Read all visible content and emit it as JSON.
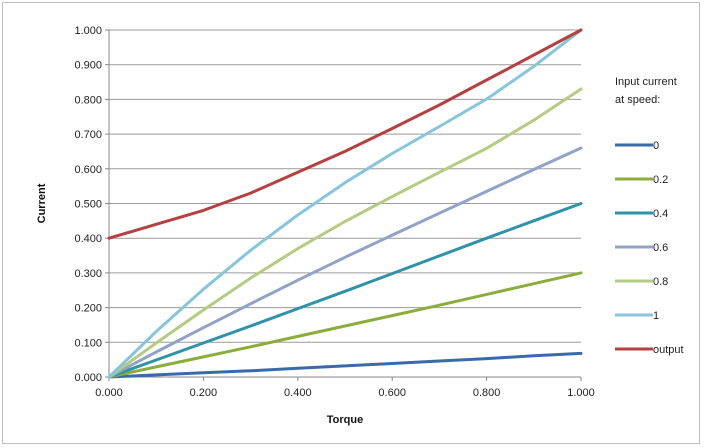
{
  "chart_data": {
    "type": "line",
    "title": "",
    "xlabel": "Torque",
    "ylabel": "Current",
    "xlim": [
      0,
      1
    ],
    "ylim": [
      0,
      1
    ],
    "grid": "horizontal",
    "x_ticks": [
      "0.000",
      "0.200",
      "0.400",
      "0.600",
      "0.800",
      "1.000"
    ],
    "y_ticks": [
      "0.000",
      "0.100",
      "0.200",
      "0.300",
      "0.400",
      "0.500",
      "0.600",
      "0.700",
      "0.800",
      "0.900",
      "1.000"
    ],
    "legend": {
      "title_lines": [
        "Input current",
        "at speed:"
      ],
      "placement": "right"
    },
    "x": [
      0,
      0.1,
      0.2,
      0.3,
      0.4,
      0.5,
      0.6,
      0.7,
      0.8,
      0.9,
      1.0
    ],
    "series": [
      {
        "name": "0",
        "color": "#3a6aa8",
        "values": [
          0.0,
          0.006,
          0.012,
          0.018,
          0.025,
          0.032,
          0.039,
          0.046,
          0.053,
          0.061,
          0.068
        ]
      },
      {
        "name": "0.2",
        "color": "#8aad3c",
        "values": [
          0.0,
          0.029,
          0.058,
          0.087,
          0.117,
          0.147,
          0.177,
          0.207,
          0.238,
          0.269,
          0.3
        ]
      },
      {
        "name": "0.4",
        "color": "#2e92a8",
        "values": [
          0.0,
          0.049,
          0.098,
          0.147,
          0.197,
          0.247,
          0.298,
          0.349,
          0.4,
          0.45,
          0.5
        ]
      },
      {
        "name": "0.6",
        "color": "#8fa2c8",
        "values": [
          0.0,
          0.072,
          0.142,
          0.211,
          0.279,
          0.345,
          0.409,
          0.472,
          0.535,
          0.598,
          0.66
        ]
      },
      {
        "name": "0.8",
        "color": "#b4cc82",
        "values": [
          0.0,
          0.098,
          0.193,
          0.285,
          0.37,
          0.448,
          0.52,
          0.59,
          0.659,
          0.74,
          0.83
        ]
      },
      {
        "name": "1",
        "color": "#87c5dc",
        "values": [
          0.0,
          0.131,
          0.253,
          0.365,
          0.467,
          0.56,
          0.644,
          0.722,
          0.801,
          0.895,
          1.0
        ]
      },
      {
        "name": "output",
        "color": "#b54040",
        "values": [
          0.4,
          0.44,
          0.48,
          0.53,
          0.59,
          0.65,
          0.716,
          0.784,
          0.856,
          0.928,
          1.0
        ]
      }
    ]
  }
}
